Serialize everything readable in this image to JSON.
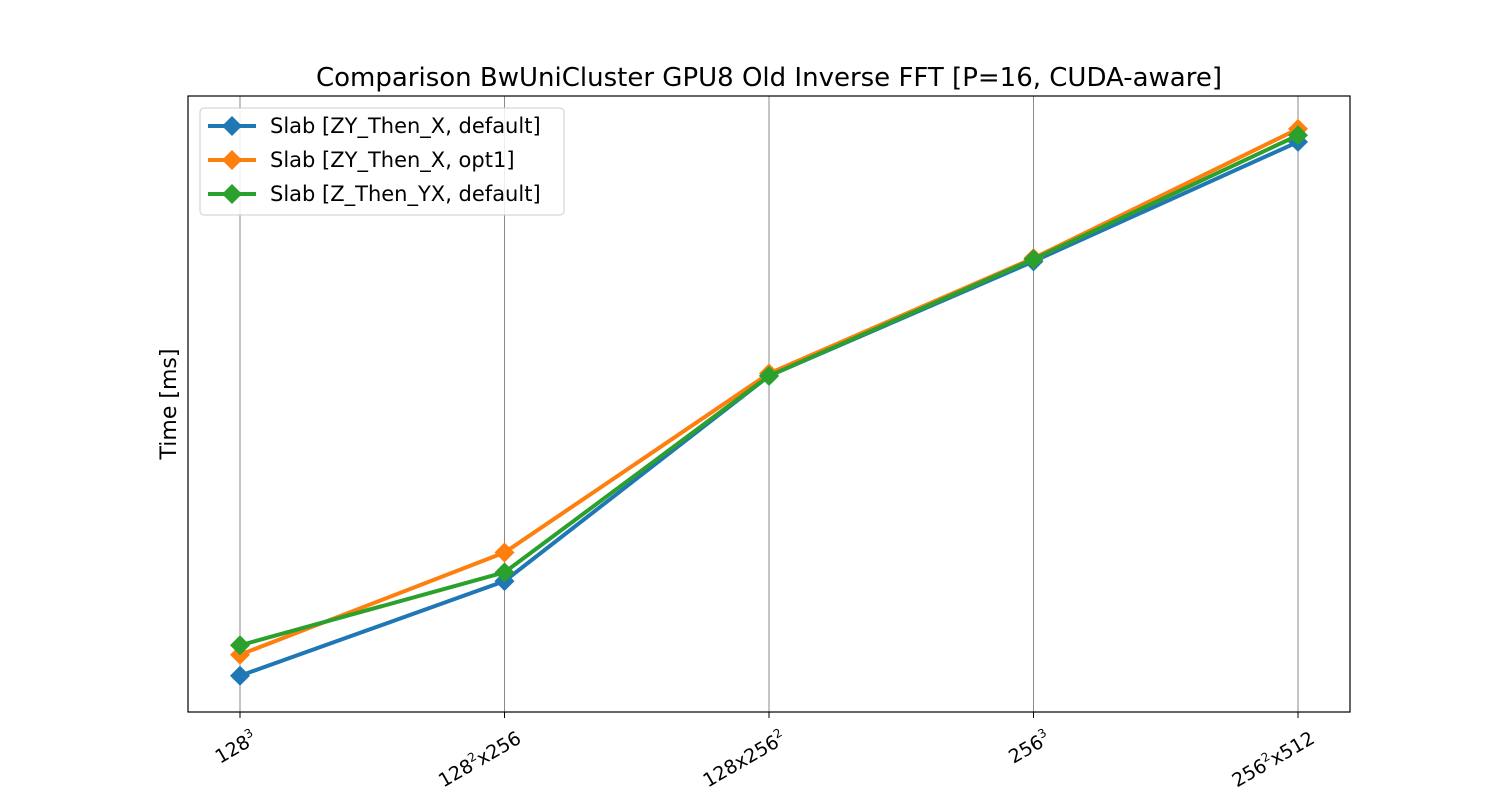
{
  "chart_data": {
    "type": "line",
    "title": "Comparison BwUniCluster GPU8 Old Inverse FFT [P=16, CUDA-aware]",
    "xlabel": "",
    "ylabel": "Time [ms]",
    "categories": [
      {
        "base": "128",
        "sup": "3",
        "tail": ""
      },
      {
        "base": "128",
        "sup": "2",
        "tail": "x256"
      },
      {
        "base": "128x256",
        "sup": "2",
        "tail": ""
      },
      {
        "base": "256",
        "sup": "3",
        "tail": ""
      },
      {
        "base": "256",
        "sup": "2",
        "tail": "x512"
      }
    ],
    "yscale": "log",
    "ylim": [
      0.46,
      42
    ],
    "y_ticks_shown": false,
    "grid": "x-only",
    "legend_position": "top-left",
    "series": [
      {
        "name": "Slab [ZY_Then_X, default]",
        "color": "#1f77b4",
        "values": [
          0.6,
          1.2,
          5.4,
          12.5,
          30.0
        ]
      },
      {
        "name": "Slab [ZY_Then_X, opt1]",
        "color": "#ff7f0e",
        "values": [
          0.7,
          1.48,
          5.5,
          12.8,
          33.0
        ]
      },
      {
        "name": "Slab [Z_Then_YX, default]",
        "color": "#2ca02c",
        "values": [
          0.75,
          1.28,
          5.4,
          12.7,
          31.5
        ]
      }
    ]
  }
}
